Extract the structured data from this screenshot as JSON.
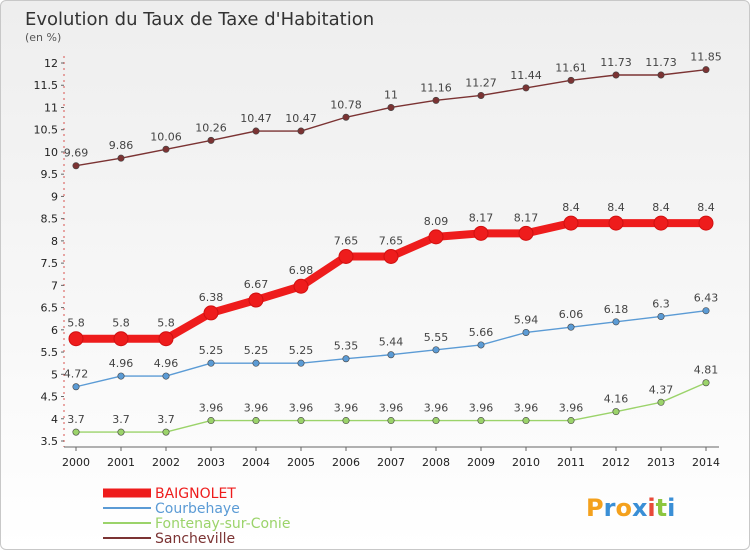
{
  "chart_data": {
    "type": "line",
    "title": "Evolution du Taux de Taxe d'Habitation",
    "subtitle": "(en %)",
    "x": [
      "2000",
      "2001",
      "2002",
      "2003",
      "2004",
      "2005",
      "2006",
      "2007",
      "2008",
      "2009",
      "2010",
      "2011",
      "2012",
      "2013",
      "2014"
    ],
    "ylim": [
      3.5,
      12
    ],
    "yticks": [
      "3.5",
      "4",
      "4.5",
      "5",
      "5.5",
      "6",
      "6.5",
      "7",
      "7.5",
      "8",
      "8.5",
      "9",
      "9.5",
      "10",
      "10.5",
      "11",
      "11.5",
      "12"
    ],
    "grid": false,
    "legend_position": "bottom-left",
    "series": [
      {
        "name": "BAIGNOLET",
        "color": "#ee1c1c",
        "emphasis": true,
        "values": [
          5.8,
          5.8,
          5.8,
          6.38,
          6.67,
          6.98,
          7.65,
          7.65,
          8.09,
          8.17,
          8.17,
          8.4,
          8.4,
          8.4,
          8.4
        ],
        "labels": [
          "5.8",
          "5.8",
          "5.8",
          "6.38",
          "6.67",
          "6.98",
          "7.65",
          "7.65",
          "8.09",
          "8.17",
          "8.17",
          "8.4",
          "8.4",
          "8.4",
          "8.4"
        ]
      },
      {
        "name": "Courbehaye",
        "color": "#5b9bd5",
        "emphasis": false,
        "values": [
          4.72,
          4.96,
          4.96,
          5.25,
          5.25,
          5.25,
          5.35,
          5.44,
          5.55,
          5.66,
          5.94,
          6.06,
          6.18,
          6.3,
          6.43
        ],
        "labels": [
          "4.72",
          "4.96",
          "4.96",
          "5.25",
          "5.25",
          "5.25",
          "5.35",
          "5.44",
          "5.55",
          "5.66",
          "5.94",
          "6.06",
          "6.18",
          "6.3",
          "6.43"
        ]
      },
      {
        "name": "Fontenay-sur-Conie",
        "color": "#9bd36a",
        "emphasis": false,
        "values": [
          3.7,
          3.7,
          3.7,
          3.96,
          3.96,
          3.96,
          3.96,
          3.96,
          3.96,
          3.96,
          3.96,
          3.96,
          4.16,
          4.37,
          4.81
        ],
        "labels": [
          "3.7",
          "3.7",
          "3.7",
          "3.96",
          "3.96",
          "3.96",
          "3.96",
          "3.96",
          "3.96",
          "3.96",
          "3.96",
          "3.96",
          "4.16",
          "4.37",
          "4.81"
        ]
      },
      {
        "name": "Sancheville",
        "color": "#7b3333",
        "emphasis": false,
        "values": [
          9.69,
          9.86,
          10.06,
          10.26,
          10.47,
          10.47,
          10.78,
          11,
          11.16,
          11.27,
          11.44,
          11.61,
          11.73,
          11.73,
          11.85
        ],
        "labels": [
          "9.69",
          "9.86",
          "10.06",
          "10.26",
          "10.47",
          "10.47",
          "10.78",
          "11",
          "11.16",
          "11.27",
          "11.44",
          "11.61",
          "11.73",
          "11.73",
          "11.85"
        ]
      }
    ]
  },
  "brand": {
    "letters": [
      "P",
      "r",
      "o",
      "x",
      "i",
      "t",
      "i"
    ],
    "colors": [
      "#f4a11d",
      "#3a8fd6",
      "#f4a11d",
      "#3a8fd6",
      "#e84a3a",
      "#8cc63f",
      "#3a8fd6"
    ]
  }
}
